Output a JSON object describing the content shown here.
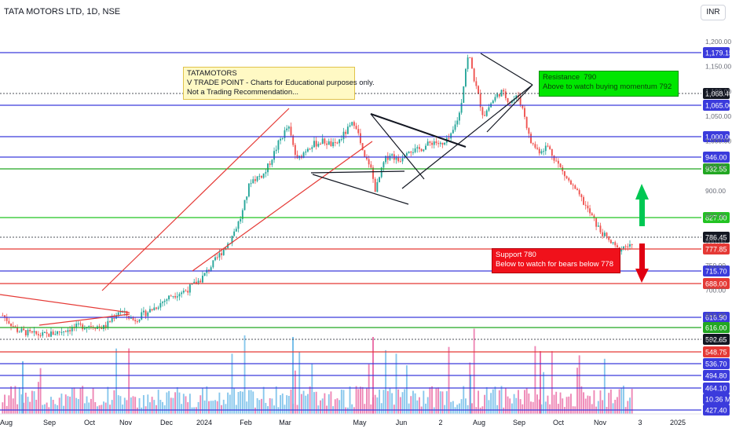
{
  "header": {
    "symbol_line": "TATA MOTORS LTD, 1D, NSE",
    "currency_button": "INR"
  },
  "notes": {
    "edu": "TATAMOTORS\nV TRADE POINT - Charts for Educational purposes only.\nNot a Trading Recommendation...",
    "resistance": "Resistance  790\nAbove to watch buying momentum 792",
    "support": "Support 780\nBelow to watch for bears below 778"
  },
  "chart_data": {
    "type": "candlestick",
    "symbol": "TATAMOTORS",
    "interval": "1D",
    "exchange": "NSE",
    "x_axis_labels": [
      "Aug",
      "Sep",
      "Oct",
      "Nov",
      "Dec",
      "2024",
      "Feb",
      "Mar",
      "May",
      "Jun",
      "2",
      "Aug",
      "Sep",
      "Oct",
      "Nov",
      "3",
      "2025"
    ],
    "y_axis_ticks": [
      1200,
      1150,
      1100,
      1050,
      1000,
      950,
      900,
      850,
      800,
      750,
      700,
      650,
      600
    ],
    "y_axis_tick_labels": [
      "1,200.00",
      "1,150.00",
      "1,100.00",
      "1,050.00",
      "1,000.00",
      "950.00",
      "900.00",
      "850.00",
      "800.00",
      "750.00",
      "700.00",
      "650.00",
      "600.00"
    ],
    "price_range": [
      560,
      1212
    ],
    "horizontal_levels": [
      {
        "label": "1,179.15",
        "value": 1179.15,
        "color": "#3b3bdc"
      },
      {
        "label": "1,068.40",
        "value": 1068.4,
        "color": "#131722"
      },
      {
        "label": "1,065.00",
        "value": 1065.0,
        "color": "#3b3bdc"
      },
      {
        "label": "1,000.00",
        "value": 1000.0,
        "color": "#3b3bdc"
      },
      {
        "label": "946.00",
        "value": 946.0,
        "color": "#3b3bdc"
      },
      {
        "label": "932.55",
        "value": 932.55,
        "color": "#22a722"
      },
      {
        "label": "827.00",
        "value": 827.0,
        "color": "#22c322"
      },
      {
        "label": "786.45",
        "value": 786.45,
        "color": "#131722"
      },
      {
        "label": "777.85",
        "value": 777.85,
        "color": "#e53935"
      },
      {
        "label": "715.70",
        "value": 715.7,
        "color": "#3b3bdc"
      },
      {
        "label": "688.00",
        "value": 688.0,
        "color": "#e53935"
      },
      {
        "label": "616.90",
        "value": 616.9,
        "color": "#3b3bdc"
      },
      {
        "label": "616.00",
        "value": 616.0,
        "color": "#22a722"
      },
      {
        "label": "592.65",
        "value": 592.65,
        "color": "#131722"
      },
      {
        "label": "548.75",
        "value": 548.75,
        "color": "#e53935"
      },
      {
        "label": "536.70",
        "value": 536.7,
        "color": "#3b3bdc"
      },
      {
        "label": "494.80",
        "value": 494.8,
        "color": "#3b3bdc"
      },
      {
        "label": "464.10",
        "value": 464.1,
        "color": "#3b3bdc"
      },
      {
        "label": "10.36 M",
        "value": null,
        "color": "#3b3bdc"
      },
      {
        "label": "427.40",
        "value": 427.4,
        "color": "#3b3bdc"
      }
    ],
    "price_path": [
      {
        "t": 0,
        "p": 650
      },
      {
        "t": 5,
        "p": 620
      },
      {
        "t": 10,
        "p": 612
      },
      {
        "t": 15,
        "p": 610
      },
      {
        "t": 20,
        "p": 618
      },
      {
        "t": 25,
        "p": 626
      },
      {
        "t": 30,
        "p": 630
      },
      {
        "t": 35,
        "p": 625
      },
      {
        "t": 40,
        "p": 660
      },
      {
        "t": 45,
        "p": 640
      },
      {
        "t": 52,
        "p": 665
      },
      {
        "t": 58,
        "p": 690
      },
      {
        "t": 63,
        "p": 700
      },
      {
        "t": 68,
        "p": 722
      },
      {
        "t": 73,
        "p": 760
      },
      {
        "t": 78,
        "p": 800
      },
      {
        "t": 82,
        "p": 850
      },
      {
        "t": 85,
        "p": 920
      },
      {
        "t": 90,
        "p": 935
      },
      {
        "t": 95,
        "p": 1000
      },
      {
        "t": 98,
        "p": 1030
      },
      {
        "t": 101,
        "p": 960
      },
      {
        "t": 105,
        "p": 990
      },
      {
        "t": 110,
        "p": 1000
      },
      {
        "t": 114,
        "p": 990
      },
      {
        "t": 118,
        "p": 1020
      },
      {
        "t": 121,
        "p": 1040
      },
      {
        "t": 124,
        "p": 965
      },
      {
        "t": 126,
        "p": 955
      },
      {
        "t": 128,
        "p": 900
      },
      {
        "t": 131,
        "p": 960
      },
      {
        "t": 133,
        "p": 975
      },
      {
        "t": 136,
        "p": 960
      },
      {
        "t": 139,
        "p": 985
      },
      {
        "t": 142,
        "p": 980
      },
      {
        "t": 145,
        "p": 990
      },
      {
        "t": 148,
        "p": 1000
      },
      {
        "t": 151,
        "p": 990
      },
      {
        "t": 154,
        "p": 1010
      },
      {
        "t": 157,
        "p": 1060
      },
      {
        "t": 159,
        "p": 1150
      },
      {
        "t": 160,
        "p": 1175
      },
      {
        "t": 162,
        "p": 1120
      },
      {
        "t": 165,
        "p": 1050
      },
      {
        "t": 168,
        "p": 1080
      },
      {
        "t": 171,
        "p": 1100
      },
      {
        "t": 174,
        "p": 1080
      },
      {
        "t": 177,
        "p": 1090
      },
      {
        "t": 179,
        "p": 1055
      },
      {
        "t": 181,
        "p": 1000
      },
      {
        "t": 184,
        "p": 980
      },
      {
        "t": 187,
        "p": 990
      },
      {
        "t": 190,
        "p": 960
      },
      {
        "t": 193,
        "p": 930
      },
      {
        "t": 196,
        "p": 905
      },
      {
        "t": 199,
        "p": 880
      },
      {
        "t": 202,
        "p": 850
      },
      {
        "t": 205,
        "p": 820
      },
      {
        "t": 208,
        "p": 800
      },
      {
        "t": 211,
        "p": 782
      },
      {
        "t": 214,
        "p": 790
      },
      {
        "t": 216,
        "p": 786
      }
    ]
  }
}
